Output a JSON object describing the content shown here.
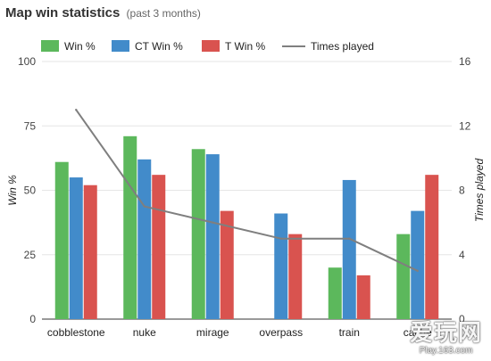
{
  "header": {
    "title": "Map win statistics",
    "subtitle": "(past 3 months)"
  },
  "watermark": {
    "text": "爱玩网",
    "url": "Play.163.com"
  },
  "colors": {
    "win": "#5cb85c",
    "ct": "#428bca",
    "t": "#d9534f",
    "times": "#7f7f7f",
    "grid": "#e6e6e6",
    "axis": "#333333"
  },
  "chart_data": {
    "type": "bar",
    "title": "Map win statistics",
    "subtitle": "(past 3 months)",
    "categories": [
      "cobblestone",
      "nuke",
      "mirage",
      "overpass",
      "train",
      "cache"
    ],
    "ylabel": "Win %",
    "y2label": "Times played",
    "ylim": [
      0,
      100
    ],
    "y2lim": [
      0,
      16
    ],
    "yticks": [
      "0",
      "25",
      "50",
      "75",
      "100"
    ],
    "y2ticks": [
      "0",
      "4",
      "8",
      "12",
      "16"
    ],
    "legend_position": "top",
    "grid": true,
    "series": [
      {
        "name": "Win %",
        "type": "bar",
        "axis": "left",
        "color": "#5cb85c",
        "values": [
          61,
          71,
          66,
          0,
          20,
          33
        ]
      },
      {
        "name": "CT Win %",
        "type": "bar",
        "axis": "left",
        "color": "#428bca",
        "values": [
          55,
          62,
          64,
          41,
          54,
          42
        ]
      },
      {
        "name": "T Win %",
        "type": "bar",
        "axis": "left",
        "color": "#d9534f",
        "values": [
          52,
          56,
          42,
          33,
          17,
          56
        ]
      },
      {
        "name": "Times played",
        "type": "line",
        "axis": "right",
        "color": "#7f7f7f",
        "values": [
          13,
          7,
          6,
          5,
          5,
          3
        ]
      }
    ]
  }
}
